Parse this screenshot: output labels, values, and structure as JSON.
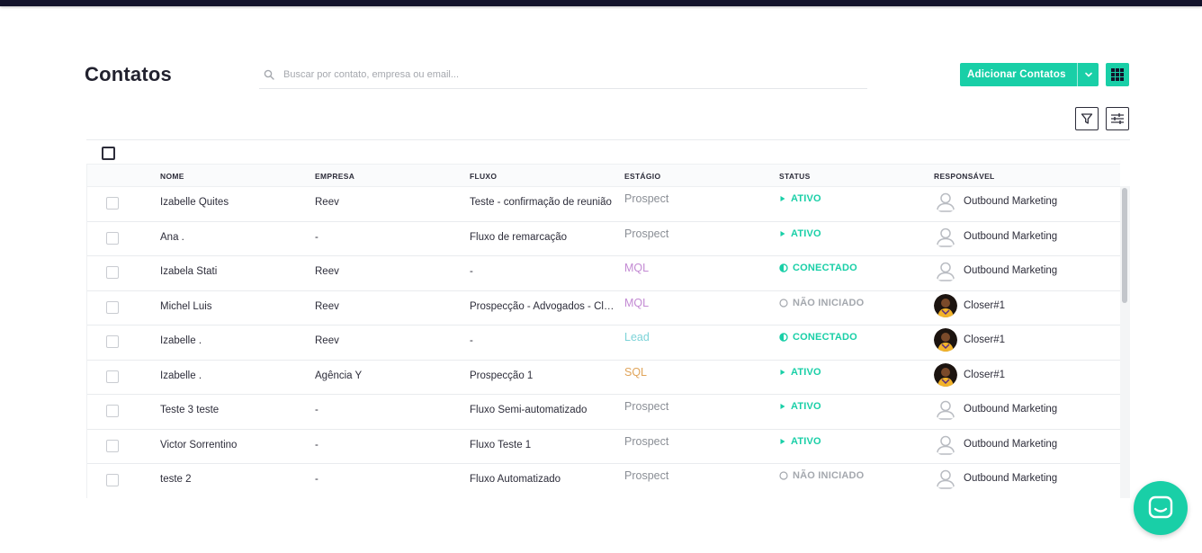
{
  "page": {
    "title": "Contatos"
  },
  "search": {
    "placeholder": "Buscar por contato, empresa ou email..."
  },
  "toolbar": {
    "add_label": "Adicionar Contatos",
    "accent": "#19cfa7"
  },
  "columns": [
    "NOME",
    "EMPRESA",
    "FLUXO",
    "ESTÁGIO",
    "STATUS",
    "RESPONSÁVEL"
  ],
  "stage_colors": {
    "Prospect": "#8b8f96",
    "MQL": "#c38ad3",
    "Lead": "#7dd3d8",
    "SQL": "#e0a45a"
  },
  "status_colors": {
    "ativo": "#19cfa7",
    "conectado": "#19cfa7",
    "nao_iniciado": "#a4a8ae"
  },
  "rows": [
    {
      "nome": "Izabelle Quites",
      "empresa": "Reev",
      "fluxo": "Teste - confirmação de reunião",
      "estagio": "Prospect",
      "status": "ATIVO",
      "status_kind": "ativo",
      "responsavel": "Outbound Marketing",
      "avatar": "user-outline"
    },
    {
      "nome": "Ana .",
      "empresa": "-",
      "fluxo": "Fluxo de remarcação",
      "estagio": "Prospect",
      "status": "ATIVO",
      "status_kind": "ativo",
      "responsavel": "Outbound Marketing",
      "avatar": "user-outline"
    },
    {
      "nome": "Izabela Stati",
      "empresa": "Reev",
      "fluxo": "-",
      "estagio": "MQL",
      "status": "CONECTADO",
      "status_kind": "conectado",
      "responsavel": "Outbound Marketing",
      "avatar": "user-outline"
    },
    {
      "nome": "Michel Luis",
      "empresa": "Reev",
      "fluxo": "Prospecção - Advogados - Closer",
      "estagio": "MQL",
      "status": "NÃO INICIADO",
      "status_kind": "nao_iniciado",
      "responsavel": "Closer#1",
      "avatar": "user-photo"
    },
    {
      "nome": "Izabelle .",
      "empresa": "Reev",
      "fluxo": "-",
      "estagio": "Lead",
      "status": "CONECTADO",
      "status_kind": "conectado",
      "responsavel": "Closer#1",
      "avatar": "user-photo"
    },
    {
      "nome": "Izabelle .",
      "empresa": "Agência Y",
      "fluxo": "Prospecção 1",
      "estagio": "SQL",
      "status": "ATIVO",
      "status_kind": "ativo",
      "responsavel": "Closer#1",
      "avatar": "user-photo"
    },
    {
      "nome": "Teste 3 teste",
      "empresa": "-",
      "fluxo": "Fluxo Semi-automatizado",
      "estagio": "Prospect",
      "status": "ATIVO",
      "status_kind": "ativo",
      "responsavel": "Outbound Marketing",
      "avatar": "user-outline"
    },
    {
      "nome": "Victor Sorrentino",
      "empresa": "-",
      "fluxo": "Fluxo Teste 1",
      "estagio": "Prospect",
      "status": "ATIVO",
      "status_kind": "ativo",
      "responsavel": "Outbound Marketing",
      "avatar": "user-outline"
    },
    {
      "nome": "teste 2",
      "empresa": "-",
      "fluxo": "Fluxo Automatizado",
      "estagio": "Prospect",
      "status": "NÃO INICIADO",
      "status_kind": "nao_iniciado",
      "responsavel": "Outbound Marketing",
      "avatar": "user-outline"
    },
    {
      "nome": "",
      "empresa": "",
      "fluxo": "",
      "estagio": "",
      "status": "",
      "status_kind": "",
      "responsavel": "",
      "avatar": ""
    }
  ]
}
